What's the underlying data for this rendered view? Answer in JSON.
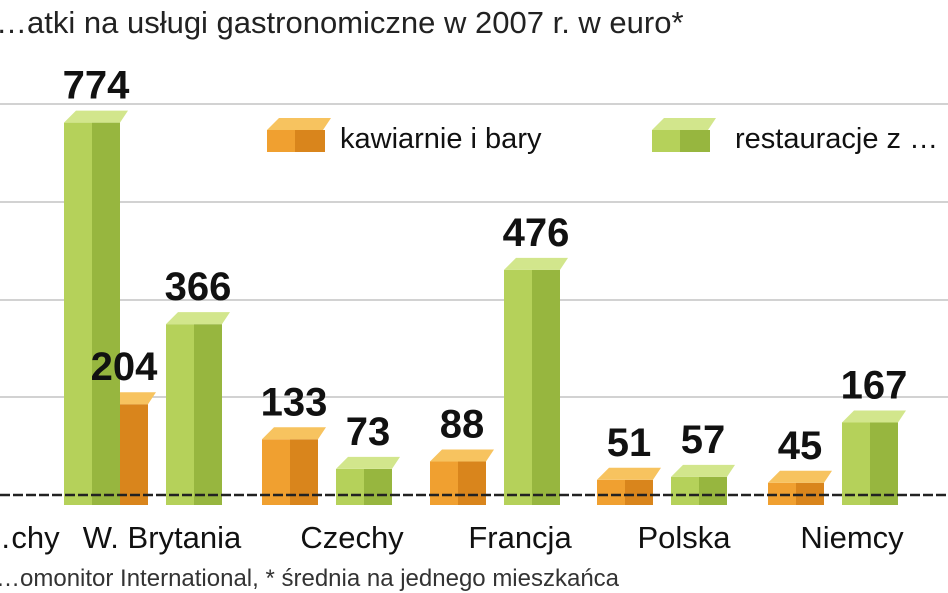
{
  "chart_data": {
    "type": "bar",
    "title": "…atki na usługi gastronomiczne w 2007 r. w euro*",
    "source": "…omonitor International, * średnia na jednego mieszkańca",
    "categories": [
      "…chy",
      "W. Brytania",
      "Czechy",
      "Francja",
      "Polska",
      "Niemcy"
    ],
    "series": [
      {
        "name": "kawiarnie i bary",
        "color": "#f0a030",
        "values": [
          null,
          204,
          133,
          88,
          51,
          45
        ]
      },
      {
        "name": "restauracje z …",
        "color": "#b5d15a",
        "values": [
          774,
          366,
          73,
          476,
          57,
          167
        ]
      }
    ],
    "value_labels": [
      [
        null,
        "204",
        "133",
        "88",
        "51",
        "45"
      ],
      [
        "774",
        "366",
        "73",
        "476",
        "57",
        "167"
      ]
    ],
    "ylim": [
      0,
      840
    ],
    "grid": true,
    "legend_position": "top-right"
  }
}
